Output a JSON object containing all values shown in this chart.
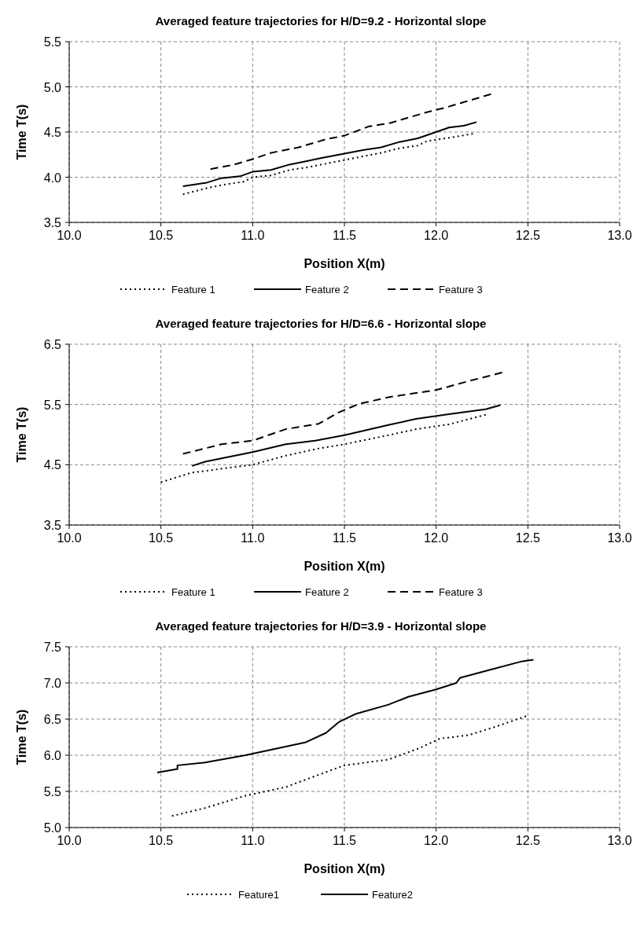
{
  "chart_data": [
    {
      "type": "line",
      "title": "Averaged feature trajectories for H/D=9.2 - Horizontal slope",
      "xlabel": "Position X(m)",
      "ylabel": "Time T(s)",
      "xlim": [
        10,
        13
      ],
      "xticks": [
        {
          "value": 10,
          "label": "10.0"
        },
        10.5,
        {
          "value": 11,
          "label": "11.0"
        },
        11.5,
        {
          "value": 12,
          "label": "12.0"
        },
        12.5,
        {
          "value": 13,
          "label": "13.0"
        }
      ],
      "ylim": [
        3.5,
        5.5
      ],
      "yticks": [
        3.5,
        {
          "value": 4,
          "label": "4.0"
        },
        4.5,
        {
          "value": 5,
          "label": "5.0"
        },
        5.5
      ],
      "grid": true,
      "legend": "bottom",
      "series": [
        {
          "name": "Feature 1",
          "color": "#000000",
          "line_style": "dotted",
          "x": [
            10.62,
            10.75,
            10.85,
            10.95,
            11.0,
            11.1,
            11.2,
            11.3,
            11.4,
            11.5,
            11.6,
            11.7,
            11.8,
            11.9,
            11.95,
            12.05,
            12.2
          ],
          "values": [
            3.81,
            3.88,
            3.92,
            3.95,
            4.0,
            4.02,
            4.08,
            4.11,
            4.15,
            4.19,
            4.23,
            4.27,
            4.32,
            4.35,
            4.4,
            4.43,
            4.48
          ]
        },
        {
          "name": "Feature 2",
          "color": "#000000",
          "line_style": "solid",
          "x": [
            10.62,
            10.75,
            10.83,
            10.93,
            11.0,
            11.1,
            11.2,
            11.3,
            11.37,
            11.5,
            11.6,
            11.7,
            11.8,
            11.9,
            12.0,
            12.07,
            12.15,
            12.22
          ],
          "values": [
            3.9,
            3.94,
            3.99,
            4.01,
            4.06,
            4.08,
            4.14,
            4.18,
            4.21,
            4.26,
            4.3,
            4.33,
            4.39,
            4.43,
            4.5,
            4.55,
            4.57,
            4.61
          ]
        },
        {
          "name": "Feature 3",
          "color": "#000000",
          "line_style": "dashed",
          "x": [
            10.77,
            10.9,
            11.0,
            11.1,
            11.25,
            11.4,
            11.5,
            11.63,
            11.75,
            11.85,
            11.95,
            12.05,
            12.15,
            12.3
          ],
          "values": [
            4.09,
            4.14,
            4.2,
            4.27,
            4.33,
            4.42,
            4.46,
            4.56,
            4.6,
            4.66,
            4.72,
            4.77,
            4.83,
            4.92
          ]
        }
      ]
    },
    {
      "type": "line",
      "title": "Averaged feature trajectories for H/D=6.6 - Horizontal slope",
      "xlabel": "Position X(m)",
      "ylabel": "Time T(s)",
      "xlim": [
        10,
        13
      ],
      "xticks": [
        {
          "value": 10,
          "label": "10.0"
        },
        10.5,
        {
          "value": 11,
          "label": "11.0"
        },
        11.5,
        {
          "value": 12,
          "label": "12.0"
        },
        12.5,
        {
          "value": 13,
          "label": "13.0"
        }
      ],
      "ylim": [
        3.5,
        6.5
      ],
      "yticks": [
        3.5,
        4.5,
        5.5,
        6.5
      ],
      "grid": true,
      "legend": "bottom",
      "series": [
        {
          "name": "Feature 1",
          "color": "#000000",
          "line_style": "dotted",
          "x": [
            10.5,
            10.67,
            11.0,
            11.18,
            11.36,
            11.5,
            11.74,
            11.89,
            12.07,
            12.27
          ],
          "values": [
            4.21,
            4.37,
            4.5,
            4.65,
            4.77,
            4.84,
            4.99,
            5.09,
            5.17,
            5.33
          ]
        },
        {
          "name": "Feature 2",
          "color": "#000000",
          "line_style": "solid",
          "x": [
            10.67,
            10.74,
            11.0,
            11.18,
            11.34,
            11.5,
            11.74,
            11.89,
            12.07,
            12.27,
            12.35
          ],
          "values": [
            4.48,
            4.55,
            4.71,
            4.84,
            4.9,
            4.99,
            5.16,
            5.26,
            5.34,
            5.42,
            5.49
          ]
        },
        {
          "name": "Feature 3",
          "color": "#000000",
          "line_style": "dashed",
          "x": [
            10.62,
            10.83,
            11.0,
            11.18,
            11.36,
            11.47,
            11.58,
            11.74,
            12.0,
            12.18,
            12.36
          ],
          "values": [
            4.68,
            4.84,
            4.9,
            5.09,
            5.18,
            5.37,
            5.51,
            5.62,
            5.74,
            5.89,
            6.03
          ]
        }
      ]
    },
    {
      "type": "line",
      "title": "Averaged feature trajectories for H/D=3.9 - Horizontal slope",
      "xlabel": "Position X(m)",
      "ylabel": "Time T(s)",
      "xlim": [
        10,
        13
      ],
      "xticks": [
        {
          "value": 10,
          "label": "10.0"
        },
        10.5,
        {
          "value": 11,
          "label": "11.0"
        },
        11.5,
        {
          "value": 12,
          "label": "12.0"
        },
        12.5,
        {
          "value": 13,
          "label": "13.0"
        }
      ],
      "ylim": [
        5,
        7.5
      ],
      "yticks": [
        {
          "value": 5,
          "label": "5.0"
        },
        5.5,
        {
          "value": 6,
          "label": "6.0"
        },
        6.5,
        {
          "value": 7,
          "label": "7.0"
        },
        7.5
      ],
      "grid": true,
      "legend": "bottom",
      "series": [
        {
          "name": "Feature1",
          "color": "#000000",
          "line_style": "dotted",
          "x": [
            10.56,
            10.74,
            10.96,
            11.18,
            11.36,
            11.5,
            11.74,
            11.91,
            12.02,
            12.18,
            12.33,
            12.49
          ],
          "values": [
            5.16,
            5.27,
            5.44,
            5.56,
            5.73,
            5.86,
            5.94,
            6.1,
            6.23,
            6.28,
            6.4,
            6.54
          ]
        },
        {
          "name": "Feature2",
          "color": "#000000",
          "line_style": "solid",
          "x": [
            10.48,
            10.59,
            10.59,
            10.74,
            10.96,
            11.18,
            11.29,
            11.4,
            11.47,
            11.56,
            11.74,
            11.85,
            12.0,
            12.11,
            12.13,
            12.29,
            12.47,
            12.53
          ],
          "values": [
            5.76,
            5.81,
            5.86,
            5.9,
            6.0,
            6.12,
            6.18,
            6.31,
            6.46,
            6.57,
            6.7,
            6.81,
            6.91,
            7.0,
            7.07,
            7.18,
            7.3,
            7.32
          ]
        }
      ]
    }
  ]
}
